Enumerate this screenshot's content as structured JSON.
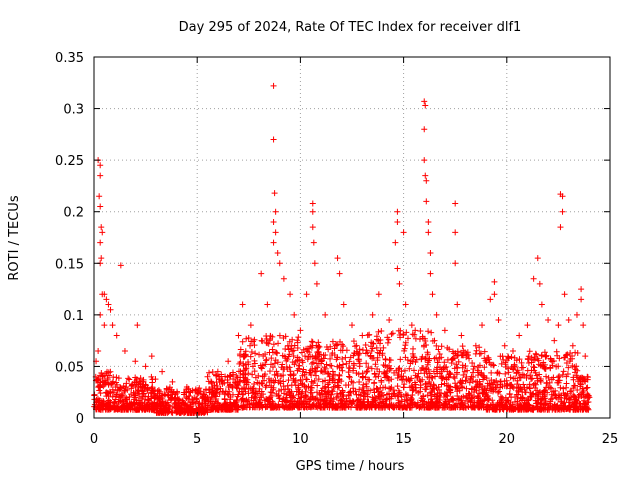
{
  "chart_data": {
    "type": "scatter",
    "title": "Day 295 of 2024, Rate Of TEC Index for receiver dlf1",
    "xlabel": "GPS time / hours",
    "ylabel": "ROTI / TECUs",
    "xlim": [
      0,
      25
    ],
    "ylim": [
      0,
      0.35
    ],
    "x_ticks": [
      "0",
      "5",
      "10",
      "15",
      "20",
      "25"
    ],
    "y_ticks": [
      "0",
      "0.05",
      "0.1",
      "0.15",
      "0.2",
      "0.25",
      "0.3",
      "0.35"
    ],
    "grid": true,
    "marker": "+",
    "series": [
      {
        "color": "#ff0000",
        "points": [
          [
            0.2,
            0.25
          ],
          [
            0.3,
            0.245
          ],
          [
            0.3,
            0.235
          ],
          [
            0.25,
            0.215
          ],
          [
            0.3,
            0.205
          ],
          [
            0.35,
            0.185
          ],
          [
            0.4,
            0.18
          ],
          [
            0.3,
            0.17
          ],
          [
            0.35,
            0.155
          ],
          [
            0.3,
            0.15
          ],
          [
            0.4,
            0.12
          ],
          [
            0.5,
            0.12
          ],
          [
            0.6,
            0.115
          ],
          [
            0.7,
            0.11
          ],
          [
            0.8,
            0.105
          ],
          [
            0.3,
            0.1
          ],
          [
            0.5,
            0.09
          ],
          [
            0.9,
            0.09
          ],
          [
            1.1,
            0.08
          ],
          [
            1.3,
            0.148
          ],
          [
            0.1,
            0.055
          ],
          [
            0.2,
            0.065
          ],
          [
            1.5,
            0.065
          ],
          [
            2.0,
            0.055
          ],
          [
            2.1,
            0.09
          ],
          [
            2.5,
            0.05
          ],
          [
            2.8,
            0.06
          ],
          [
            3.3,
            0.045
          ],
          [
            3.8,
            0.035
          ],
          [
            4.5,
            0.03
          ],
          [
            5.0,
            0.025
          ],
          [
            5.5,
            0.04
          ],
          [
            6.0,
            0.045
          ],
          [
            6.5,
            0.055
          ],
          [
            7.0,
            0.08
          ],
          [
            7.2,
            0.11
          ],
          [
            7.6,
            0.09
          ],
          [
            8.1,
            0.14
          ],
          [
            8.4,
            0.11
          ],
          [
            8.7,
            0.322
          ],
          [
            8.7,
            0.27
          ],
          [
            8.75,
            0.218
          ],
          [
            8.8,
            0.2
          ],
          [
            8.7,
            0.19
          ],
          [
            8.8,
            0.18
          ],
          [
            8.7,
            0.17
          ],
          [
            8.9,
            0.16
          ],
          [
            9.0,
            0.15
          ],
          [
            9.2,
            0.135
          ],
          [
            9.5,
            0.12
          ],
          [
            9.7,
            0.1
          ],
          [
            10.0,
            0.085
          ],
          [
            10.3,
            0.12
          ],
          [
            10.6,
            0.208
          ],
          [
            10.6,
            0.2
          ],
          [
            10.6,
            0.185
          ],
          [
            10.65,
            0.17
          ],
          [
            10.7,
            0.15
          ],
          [
            10.8,
            0.13
          ],
          [
            11.2,
            0.1
          ],
          [
            11.8,
            0.155
          ],
          [
            11.9,
            0.14
          ],
          [
            12.1,
            0.11
          ],
          [
            12.5,
            0.09
          ],
          [
            13.0,
            0.08
          ],
          [
            13.5,
            0.1
          ],
          [
            13.8,
            0.12
          ],
          [
            14.3,
            0.095
          ],
          [
            14.7,
            0.2
          ],
          [
            14.7,
            0.19
          ],
          [
            14.6,
            0.17
          ],
          [
            14.7,
            0.145
          ],
          [
            14.8,
            0.13
          ],
          [
            15.0,
            0.18
          ],
          [
            15.1,
            0.11
          ],
          [
            15.4,
            0.09
          ],
          [
            16.0,
            0.307
          ],
          [
            16.05,
            0.303
          ],
          [
            16.0,
            0.28
          ],
          [
            16.0,
            0.25
          ],
          [
            16.05,
            0.235
          ],
          [
            16.1,
            0.23
          ],
          [
            16.1,
            0.21
          ],
          [
            16.2,
            0.19
          ],
          [
            16.2,
            0.18
          ],
          [
            16.3,
            0.16
          ],
          [
            16.3,
            0.14
          ],
          [
            16.4,
            0.12
          ],
          [
            16.6,
            0.1
          ],
          [
            17.0,
            0.085
          ],
          [
            17.5,
            0.208
          ],
          [
            17.5,
            0.18
          ],
          [
            17.5,
            0.15
          ],
          [
            17.6,
            0.11
          ],
          [
            17.8,
            0.08
          ],
          [
            18.5,
            0.07
          ],
          [
            18.8,
            0.09
          ],
          [
            19.2,
            0.115
          ],
          [
            19.4,
            0.132
          ],
          [
            19.4,
            0.12
          ],
          [
            19.6,
            0.095
          ],
          [
            19.9,
            0.07
          ],
          [
            20.3,
            0.065
          ],
          [
            20.6,
            0.08
          ],
          [
            21.0,
            0.09
          ],
          [
            21.3,
            0.135
          ],
          [
            21.5,
            0.155
          ],
          [
            21.6,
            0.13
          ],
          [
            21.7,
            0.11
          ],
          [
            22.0,
            0.095
          ],
          [
            22.3,
            0.075
          ],
          [
            22.5,
            0.09
          ],
          [
            22.6,
            0.217
          ],
          [
            22.7,
            0.215
          ],
          [
            22.7,
            0.2
          ],
          [
            22.6,
            0.185
          ],
          [
            22.8,
            0.12
          ],
          [
            23.0,
            0.095
          ],
          [
            23.2,
            0.07
          ],
          [
            23.4,
            0.1
          ],
          [
            23.6,
            0.125
          ],
          [
            23.6,
            0.115
          ],
          [
            23.7,
            0.09
          ],
          [
            23.8,
            0.06
          ],
          [
            23.9,
            0.04
          ],
          [
            24.0,
            0.02
          ]
        ]
      }
    ],
    "density_bands": [
      [
        0.0,
        1.0,
        0.008,
        0.045
      ],
      [
        1.0,
        3.0,
        0.008,
        0.04
      ],
      [
        3.0,
        5.5,
        0.005,
        0.03
      ],
      [
        5.5,
        7.0,
        0.008,
        0.045
      ],
      [
        7.0,
        10.0,
        0.01,
        0.08
      ],
      [
        10.0,
        13.0,
        0.01,
        0.075
      ],
      [
        13.0,
        16.5,
        0.01,
        0.085
      ],
      [
        16.5,
        19.0,
        0.01,
        0.07
      ],
      [
        19.0,
        21.0,
        0.008,
        0.06
      ],
      [
        21.0,
        23.5,
        0.008,
        0.065
      ],
      [
        23.5,
        24.0,
        0.008,
        0.04
      ]
    ]
  }
}
